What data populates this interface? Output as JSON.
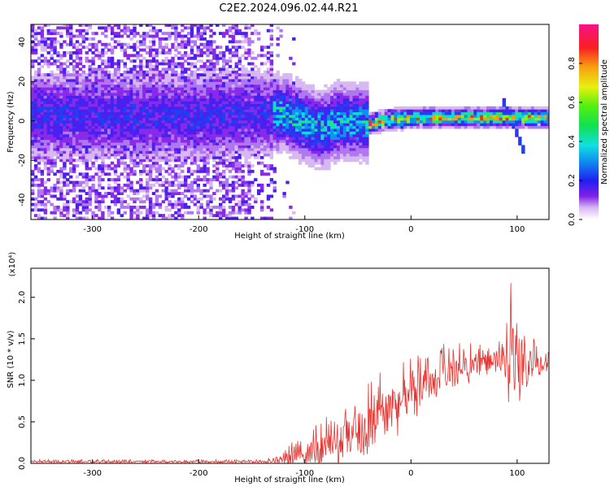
{
  "title": "C2E2.2024.096.02.44.R21",
  "chart_data": [
    {
      "type": "heatmap",
      "xlabel": "Height of straight line (km)",
      "ylabel": "Frequency (Hz)",
      "xlim": [
        -358,
        130
      ],
      "ylim": [
        -50,
        49
      ],
      "xticks": [
        -300,
        -200,
        -100,
        0,
        100
      ],
      "yticks": [
        -40,
        -20,
        0,
        20,
        40
      ],
      "colorbar": {
        "label": "Normalized spectral amplitude",
        "ticks": [
          "0.0",
          "0.2",
          "0.4",
          "0.6",
          "0.8"
        ],
        "range": [
          0,
          1
        ]
      },
      "ridge": [
        {
          "x": -350,
          "f": 2
        },
        {
          "x": -300,
          "f": 2
        },
        {
          "x": -200,
          "f": 2
        },
        {
          "x": -150,
          "f": 3
        },
        {
          "x": -120,
          "f": 3
        },
        {
          "x": -100,
          "f": -2
        },
        {
          "x": -85,
          "f": -5
        },
        {
          "x": -70,
          "f": -1
        },
        {
          "x": -50,
          "f": -1
        },
        {
          "x": -40,
          "f": -2
        },
        {
          "x": -25,
          "f": 0
        },
        {
          "x": 0,
          "f": 1
        },
        {
          "x": 50,
          "f": 1
        },
        {
          "x": 100,
          "f": 1
        },
        {
          "x": 130,
          "f": 1
        }
      ]
    },
    {
      "type": "line",
      "xlabel": "Height of straight line (km)",
      "ylabel": "SNR (10 * v/v)",
      "yscale_label": "(x10⁴)",
      "xlim": [
        -358,
        130
      ],
      "ylim": [
        0,
        2.35
      ],
      "xticks": [
        -300,
        -200,
        -100,
        0,
        100
      ],
      "yticks": [
        "0.0",
        "0.5",
        "1.0",
        "1.5",
        "2.0"
      ],
      "series": [
        {
          "color": "#e8322e",
          "envelope": [
            {
              "x": -358,
              "base": 0.02,
              "amp": 0.02
            },
            {
              "x": -140,
              "base": 0.02,
              "amp": 0.02
            },
            {
              "x": -120,
              "base": 0.05,
              "amp": 0.08
            },
            {
              "x": -100,
              "base": 0.12,
              "amp": 0.22
            },
            {
              "x": -80,
              "base": 0.18,
              "amp": 0.3
            },
            {
              "x": -50,
              "base": 0.35,
              "amp": 0.4
            },
            {
              "x": -25,
              "base": 0.6,
              "amp": 0.45
            },
            {
              "x": 0,
              "base": 0.85,
              "amp": 0.35
            },
            {
              "x": 30,
              "base": 1.05,
              "amp": 0.3
            },
            {
              "x": 60,
              "base": 1.2,
              "amp": 0.2
            },
            {
              "x": 85,
              "base": 1.25,
              "amp": 0.2
            },
            {
              "x": 90,
              "base": 1.1,
              "amp": 0.5
            },
            {
              "x": 98,
              "base": 1.2,
              "amp": 1.1
            },
            {
              "x": 105,
              "base": 1.2,
              "amp": 0.4
            },
            {
              "x": 130,
              "base": 1.25,
              "amp": 0.15
            }
          ]
        }
      ]
    }
  ]
}
